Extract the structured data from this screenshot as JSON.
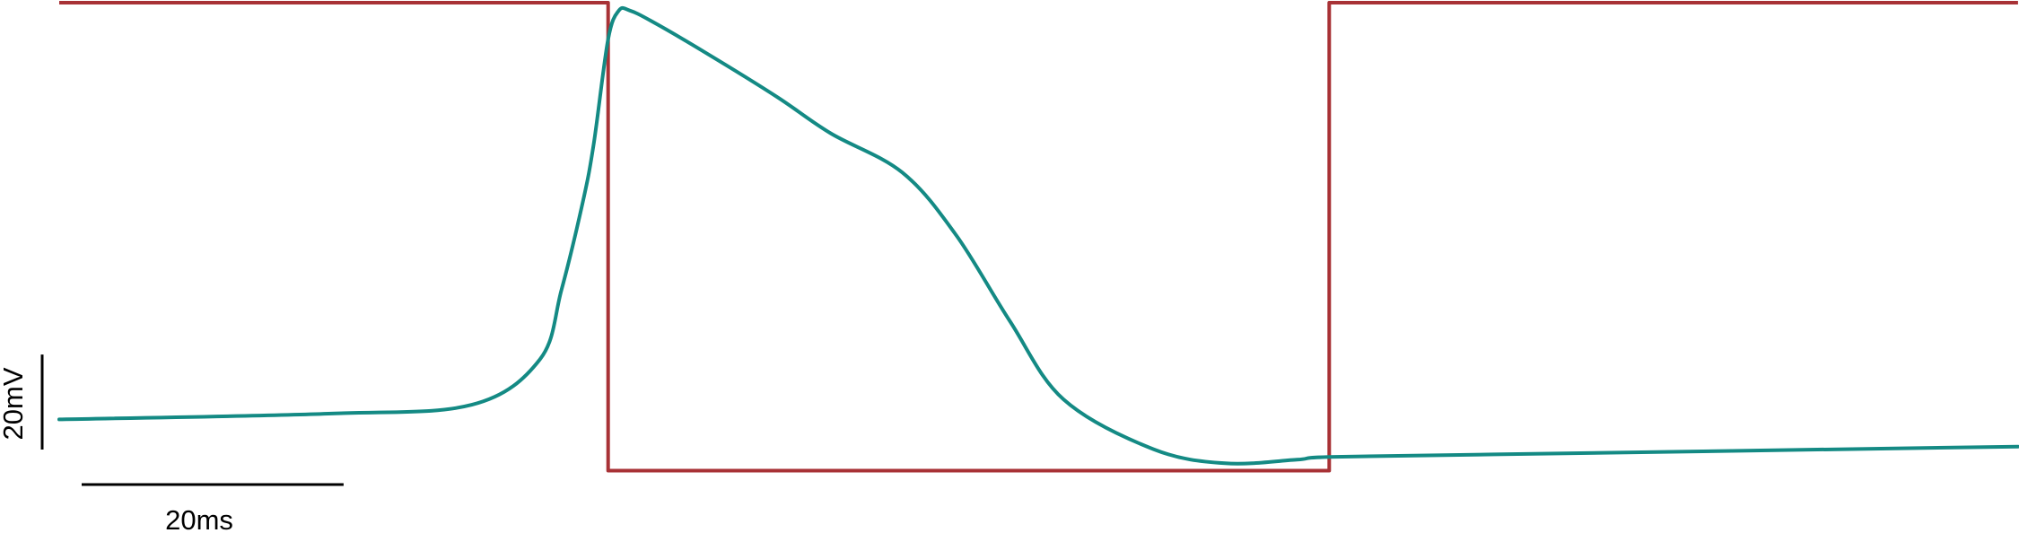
{
  "chart_data": {
    "type": "line",
    "title": "",
    "xlabel": "",
    "ylabel": "",
    "grid": false,
    "legend": "none",
    "series": [
      {
        "color": "#a83236",
        "points": [
          [
            0,
            0
          ],
          [
            30.6,
            0
          ],
          [
            30.6,
            -89.6
          ],
          [
            70.8,
            -89.6
          ],
          [
            70.8,
            0
          ],
          [
            109.2,
            0
          ]
        ]
      },
      {
        "color": "#148a84",
        "points": [
          [
            0,
            -79.8
          ],
          [
            15,
            -78.7
          ],
          [
            23,
            -77.0
          ],
          [
            26.8,
            -68.3
          ],
          [
            28.0,
            -55.0
          ],
          [
            29.2,
            -38.0
          ],
          [
            29.8,
            -27.0
          ],
          [
            30.6,
            -7.0
          ],
          [
            31.2,
            -1.5
          ],
          [
            31.8,
            -1.5
          ],
          [
            33.0,
            -3.5
          ],
          [
            36.0,
            -9.5
          ],
          [
            40.0,
            -18.0
          ],
          [
            43.0,
            -25.0
          ],
          [
            47.0,
            -32.5
          ],
          [
            50.0,
            -44.5
          ],
          [
            53.0,
            -61.0
          ],
          [
            56.0,
            -76.0
          ],
          [
            61.0,
            -85.5
          ],
          [
            65.0,
            -88.2
          ],
          [
            69.0,
            -87.5
          ],
          [
            70.8,
            -87.0
          ],
          [
            80.0,
            -86.5
          ],
          [
            109.2,
            -85.0
          ]
        ]
      }
    ],
    "scale_bars": {
      "time": "20ms",
      "voltage": "20mV"
    }
  }
}
